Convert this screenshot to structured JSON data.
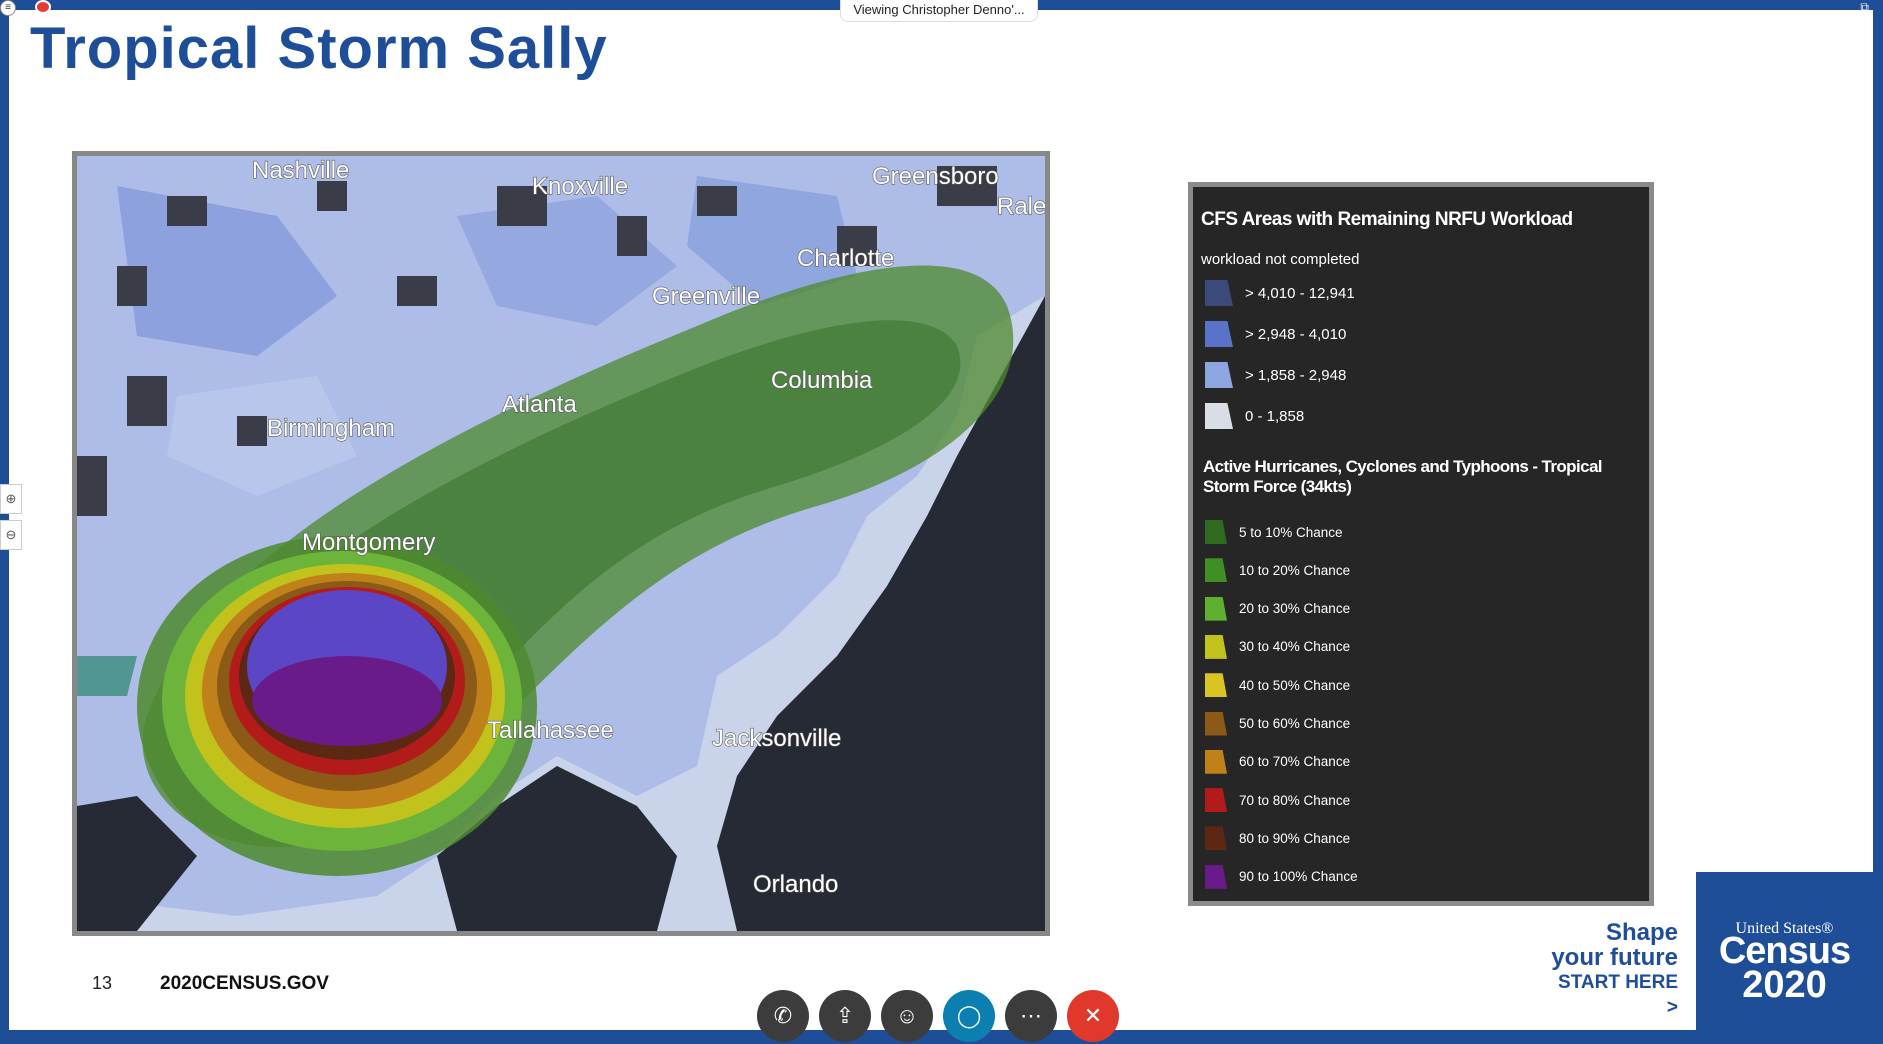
{
  "meeting": {
    "viewing_label": "Viewing Christopher Denno'...",
    "toolbar": [
      {
        "name": "call-button",
        "icon": "phone-icon",
        "glyph": "✆"
      },
      {
        "name": "share-button",
        "icon": "share-icon",
        "glyph": "⇪"
      },
      {
        "name": "participants-button",
        "icon": "person-icon",
        "glyph": "☺"
      },
      {
        "name": "chat-button",
        "icon": "chat-bubble-icon",
        "glyph": "◯"
      },
      {
        "name": "more-button",
        "icon": "ellipsis-icon",
        "glyph": "⋯"
      },
      {
        "name": "end-call-button",
        "icon": "close-icon",
        "glyph": "✕"
      }
    ]
  },
  "slide": {
    "title": "Tropical Storm Sally",
    "number": "13",
    "site": "2020CENSUS.GOV",
    "tagline": {
      "line1": "Shape",
      "line2": "your future",
      "cta": "START HERE >"
    },
    "logo": {
      "top": "United States®",
      "name": "Census",
      "year": "2020"
    }
  },
  "map": {
    "cities": [
      {
        "name": "Nashville"
      },
      {
        "name": "Knoxville"
      },
      {
        "name": "Greensboro"
      },
      {
        "name": "Raleigh"
      },
      {
        "name": "Charlotte"
      },
      {
        "name": "Greenville"
      },
      {
        "name": "Columbia"
      },
      {
        "name": "Atlanta"
      },
      {
        "name": "Birmingham"
      },
      {
        "name": "Montgomery"
      },
      {
        "name": "Tallahassee"
      },
      {
        "name": "Jacksonville"
      },
      {
        "name": "Orlando"
      }
    ]
  },
  "legend": {
    "title": "CFS Areas with Remaining NRFU Workload",
    "subtitle": "workload not completed",
    "workload": [
      {
        "label": "> 4,010 - 12,941",
        "color": "#3b4a7a"
      },
      {
        "label": "> 2,948 - 4,010",
        "color": "#5a73c8"
      },
      {
        "label": "> 1,858 - 2,948",
        "color": "#8ea6e0"
      },
      {
        "label": "0 - 1,858",
        "color": "#d8dde6"
      }
    ],
    "hurricane_title": "Active Hurricanes, Cyclones and Typhoons - Tropical Storm Force (34kts)",
    "hurricane": [
      {
        "label": "5 to 10% Chance",
        "color": "#2e6b1e"
      },
      {
        "label": "10 to 20% Chance",
        "color": "#3f8f25"
      },
      {
        "label": "20 to 30% Chance",
        "color": "#5fb030"
      },
      {
        "label": "30 to 40% Chance",
        "color": "#c2c21d"
      },
      {
        "label": "40 to 50% Chance",
        "color": "#d9c423"
      },
      {
        "label": "50 to 60% Chance",
        "color": "#8a5a16"
      },
      {
        "label": "60 to 70% Chance",
        "color": "#c0801a"
      },
      {
        "label": "70 to 80% Chance",
        "color": "#b31b1b"
      },
      {
        "label": "80 to 90% Chance",
        "color": "#5c2814"
      },
      {
        "label": "90 to 100% Chance",
        "color": "#6a1b8a"
      }
    ]
  }
}
